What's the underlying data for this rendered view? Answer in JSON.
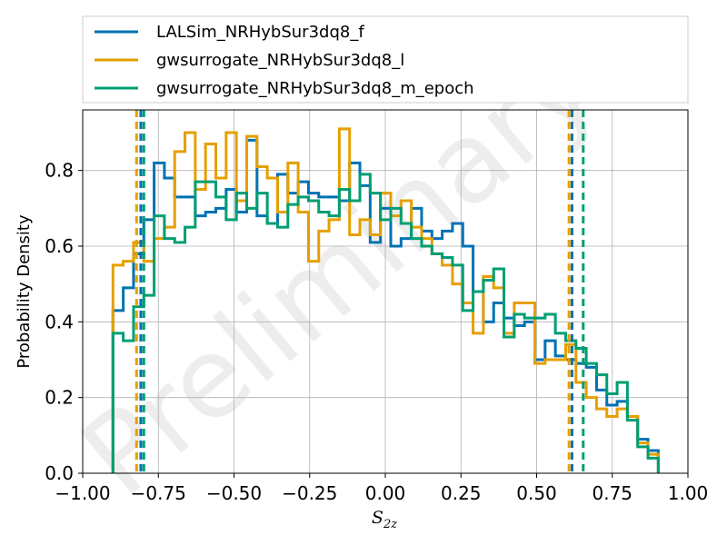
{
  "chart_data": {
    "type": "line",
    "title": "",
    "xlabel": "S_2z",
    "ylabel": "Probability Density",
    "xlim": [
      -1.0,
      1.0
    ],
    "ylim": [
      0.0,
      0.96
    ],
    "xticks": [
      -1.0,
      -0.75,
      -0.5,
      -0.25,
      0.0,
      0.25,
      0.5,
      0.75,
      1.0
    ],
    "xtick_labels": [
      "−1.00",
      "−0.75",
      "−0.50",
      "−0.25",
      "0.00",
      "0.25",
      "0.50",
      "0.75",
      "1.00"
    ],
    "yticks": [
      0.0,
      0.2,
      0.4,
      0.6,
      0.8
    ],
    "ytick_labels": [
      "0.0",
      "0.2",
      "0.4",
      "0.6",
      "0.8"
    ],
    "grid": true,
    "legend_position": "above-plot",
    "watermark": "Preliminary",
    "bin_edges": [
      -0.9,
      -0.866,
      -0.832,
      -0.798,
      -0.764,
      -0.73,
      -0.696,
      -0.662,
      -0.628,
      -0.594,
      -0.56,
      -0.526,
      -0.492,
      -0.458,
      -0.424,
      -0.39,
      -0.356,
      -0.322,
      -0.288,
      -0.254,
      -0.22,
      -0.186,
      -0.152,
      -0.118,
      -0.084,
      -0.05,
      -0.016,
      0.018,
      0.052,
      0.086,
      0.12,
      0.154,
      0.188,
      0.222,
      0.256,
      0.29,
      0.324,
      0.358,
      0.392,
      0.426,
      0.46,
      0.494,
      0.528,
      0.562,
      0.596,
      0.63,
      0.664,
      0.698,
      0.732,
      0.766,
      0.8,
      0.834,
      0.868,
      0.902
    ],
    "series": [
      {
        "name": "LALSim_NRHybSur3dq8_f",
        "color": "#0072b2",
        "density": [
          0.43,
          0.49,
          0.58,
          0.67,
          0.82,
          0.78,
          0.73,
          0.73,
          0.68,
          0.69,
          0.7,
          0.75,
          0.69,
          0.88,
          0.68,
          0.66,
          0.79,
          0.74,
          0.77,
          0.74,
          0.73,
          0.73,
          0.72,
          0.82,
          0.76,
          0.61,
          0.7,
          0.6,
          0.62,
          0.7,
          0.64,
          0.62,
          0.64,
          0.66,
          0.6,
          0.48,
          0.4,
          0.45,
          0.41,
          0.39,
          0.4,
          0.3,
          0.35,
          0.31,
          0.3,
          0.29,
          0.28,
          0.22,
          0.18,
          0.19,
          0.15,
          0.09,
          0.06
        ],
        "lines": [
          -0.808,
          0.617
        ]
      },
      {
        "name": "gwsurrogate_NRHybSur3dq8_l",
        "color": "#e69f00",
        "density": [
          0.55,
          0.56,
          0.61,
          0.56,
          0.62,
          0.65,
          0.85,
          0.9,
          0.75,
          0.87,
          0.78,
          0.9,
          0.72,
          0.89,
          0.81,
          0.78,
          0.69,
          0.82,
          0.69,
          0.56,
          0.64,
          0.67,
          0.91,
          0.63,
          0.67,
          0.63,
          0.74,
          0.68,
          0.72,
          0.65,
          0.62,
          0.58,
          0.55,
          0.5,
          0.45,
          0.37,
          0.52,
          0.49,
          0.37,
          0.45,
          0.45,
          0.29,
          0.3,
          0.3,
          0.34,
          0.24,
          0.2,
          0.17,
          0.15,
          0.17,
          0.15,
          0.08,
          0.05
        ],
        "lines": [
          -0.822,
          0.607
        ]
      },
      {
        "name": "gwsurrogate_NRHybSur3dq8_m_epoch",
        "color": "#009e73",
        "density": [
          0.37,
          0.35,
          0.44,
          0.47,
          0.68,
          0.62,
          0.61,
          0.65,
          0.77,
          0.77,
          0.73,
          0.67,
          0.74,
          0.7,
          0.74,
          0.66,
          0.65,
          0.71,
          0.73,
          0.72,
          0.69,
          0.68,
          0.75,
          0.72,
          0.79,
          0.74,
          0.67,
          0.7,
          0.66,
          0.62,
          0.6,
          0.58,
          0.57,
          0.55,
          0.43,
          0.48,
          0.51,
          0.54,
          0.36,
          0.42,
          0.41,
          0.41,
          0.42,
          0.37,
          0.35,
          0.33,
          0.29,
          0.26,
          0.21,
          0.24,
          0.14,
          0.07,
          0.04
        ],
        "lines": [
          -0.798,
          0.654
        ]
      }
    ]
  }
}
